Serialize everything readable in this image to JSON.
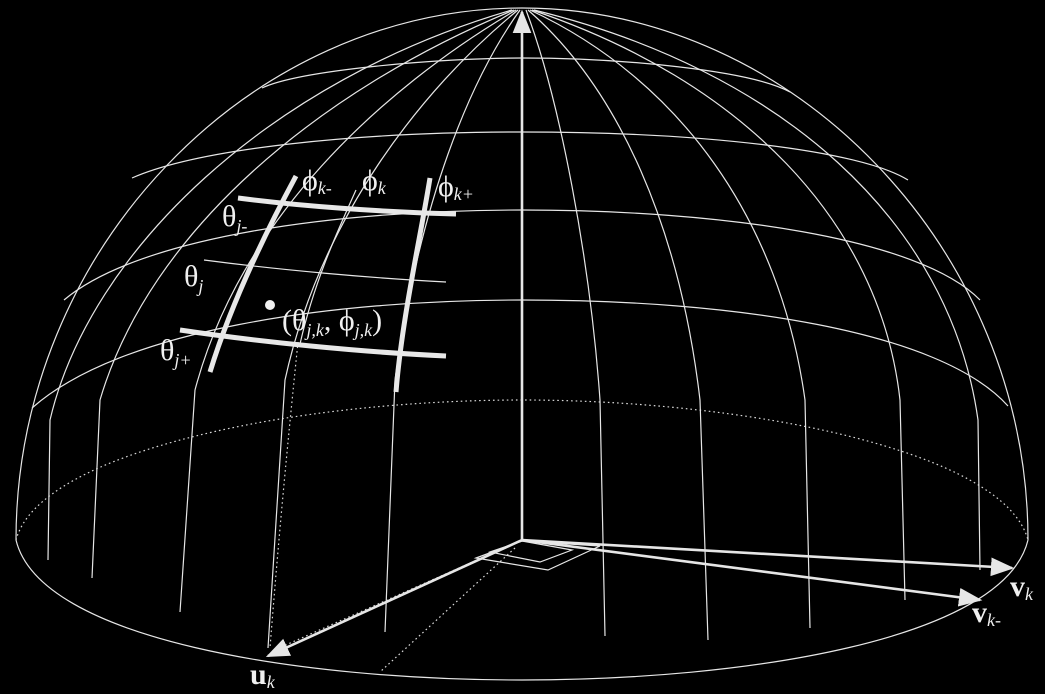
{
  "labels": {
    "phi_k_minus": {
      "sym": "ϕ",
      "sub": "k-"
    },
    "phi_k": {
      "sym": "ϕ",
      "sub": "k"
    },
    "phi_k_plus": {
      "sym": "ϕ",
      "sub": "k+"
    },
    "theta_j_minus": {
      "sym": "θ",
      "sub": "j-"
    },
    "theta_j": {
      "sym": "θ",
      "sub": "j"
    },
    "theta_j_plus": {
      "sym": "θ",
      "sub": "j+"
    },
    "point": {
      "open": "(θ",
      "sub1": "j,k",
      "mid": ", ϕ",
      "sub2": "j,k",
      "close": ")"
    },
    "v_k": {
      "sym": "v",
      "sub": "k"
    },
    "v_k_minus": {
      "sym": "v",
      "sub": "k-"
    },
    "u_k": {
      "sym": "u",
      "sub": "k"
    }
  },
  "colors": {
    "background": "#000000",
    "lines": "#e6e6e6"
  }
}
